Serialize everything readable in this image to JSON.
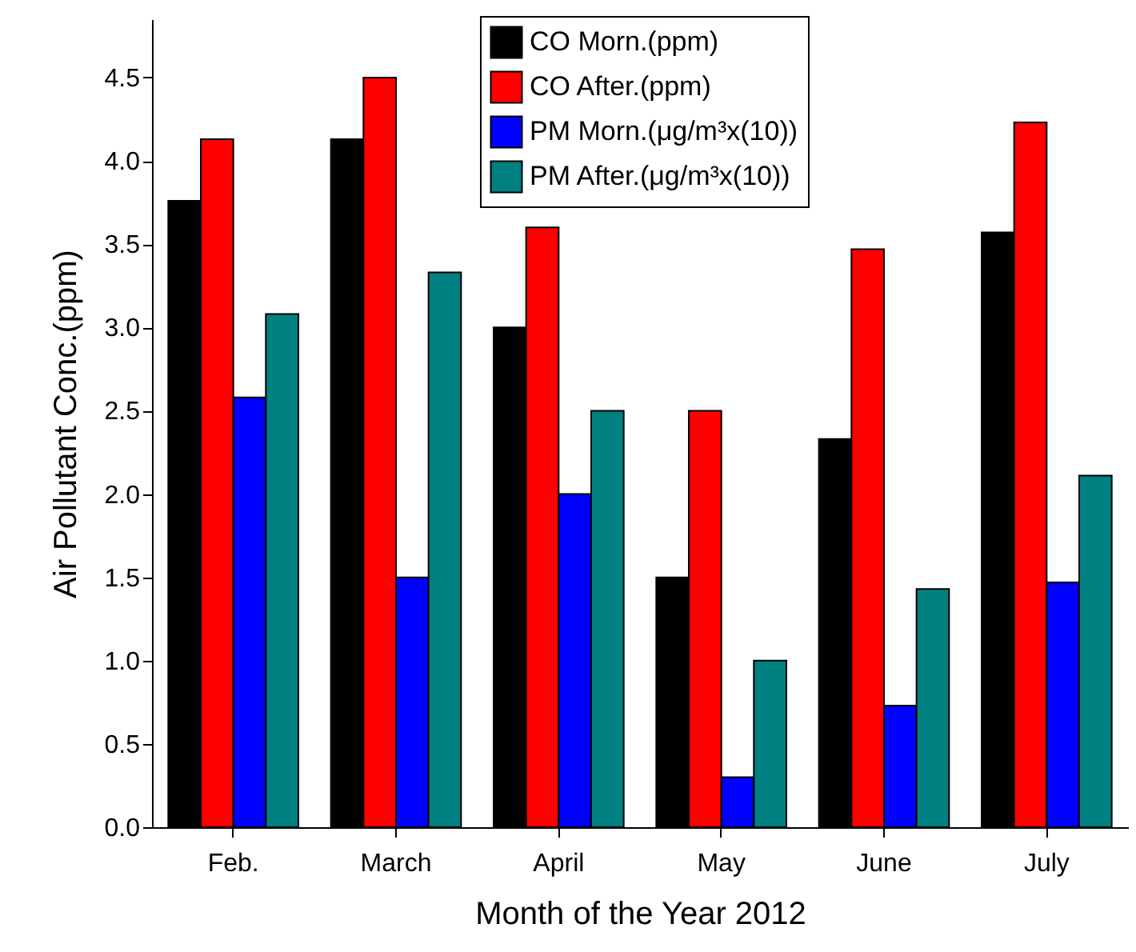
{
  "chart_data": {
    "type": "bar",
    "xlabel": "Month of the Year 2012",
    "ylabel": "Air Pollutant Conc.(ppm)",
    "categories": [
      "Feb.",
      "March",
      "April",
      "May",
      "June",
      "July"
    ],
    "series": [
      {
        "name": "CO Morn.(ppm)",
        "color": "#000000",
        "values": [
          3.76,
          4.13,
          3.0,
          1.5,
          2.33,
          3.57
        ]
      },
      {
        "name": "CO After.(ppm)",
        "color": "#ff0000",
        "values": [
          4.13,
          4.5,
          3.6,
          2.5,
          3.47,
          4.23
        ]
      },
      {
        "name": "PM Morn.(μg/m³x(10))",
        "color": "#0000ff",
        "values": [
          2.58,
          1.5,
          2.0,
          0.3,
          0.73,
          1.47
        ]
      },
      {
        "name": "PM After.(μg/m³x(10))",
        "color": "#008080",
        "values": [
          3.08,
          3.33,
          2.5,
          1.0,
          1.43,
          2.11
        ]
      }
    ],
    "ylim": [
      0,
      4.85
    ],
    "yticks": [
      {
        "value": 0,
        "label": "0.0"
      },
      0.5,
      {
        "value": 1,
        "label": "1.0"
      },
      1.5,
      {
        "value": 2,
        "label": "2.0"
      },
      2.5,
      {
        "value": 3,
        "label": "3.0"
      },
      3.5,
      {
        "value": 4,
        "label": "4.0"
      },
      4.5
    ],
    "grid": false,
    "legend": "top right"
  }
}
